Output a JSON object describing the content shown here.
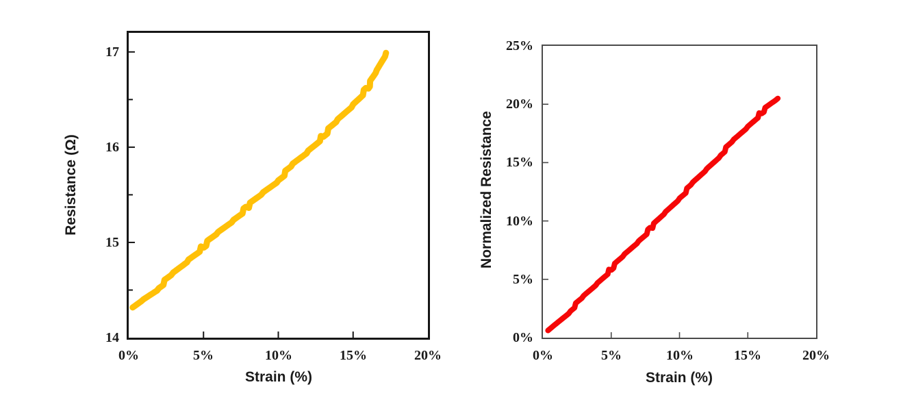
{
  "figure": {
    "background_color": "#ffffff",
    "text_color": "#1a1a1a",
    "left_axis_border_color": "#161616",
    "right_axis_border_color": "#4a4a4a"
  },
  "chart_data": [
    {
      "id": "resistance-vs-strain",
      "type": "scatter",
      "title": "",
      "xlabel": "Strain (%)",
      "ylabel": "Resistance (Ω)",
      "xlim": [
        0,
        20
      ],
      "ylim": [
        14,
        17.2
      ],
      "grid": false,
      "legend": "none",
      "marker_color": "#FFC008",
      "x_ticks": [
        "0%",
        "5%",
        "10%",
        "15%",
        "20%"
      ],
      "x_tick_values": [
        0,
        5,
        10,
        15,
        20
      ],
      "y_ticks": [
        "14",
        "15",
        "16",
        "17"
      ],
      "y_tick_values": [
        14,
        15,
        16,
        17
      ],
      "y_minor_step": 0.5,
      "points": [
        [
          0.3,
          14.3
        ],
        [
          1.0,
          14.4
        ],
        [
          2.0,
          14.53
        ],
        [
          3.0,
          14.67
        ],
        [
          4.0,
          14.82
        ],
        [
          5.0,
          14.96
        ],
        [
          6.0,
          15.1
        ],
        [
          7.0,
          15.24
        ],
        [
          8.0,
          15.38
        ],
        [
          9.0,
          15.52
        ],
        [
          10.0,
          15.66
        ],
        [
          11.0,
          15.81
        ],
        [
          12.0,
          15.96
        ],
        [
          13.0,
          16.12
        ],
        [
          14.0,
          16.28
        ],
        [
          15.0,
          16.45
        ],
        [
          16.0,
          16.63
        ],
        [
          16.6,
          16.8
        ],
        [
          17.2,
          16.99
        ]
      ]
    },
    {
      "id": "normalized-resistance-vs-strain",
      "type": "scatter",
      "title": "",
      "xlabel": "Strain (%)",
      "ylabel": "Normalized Resistance",
      "xlim": [
        0,
        20
      ],
      "ylim": [
        0,
        25
      ],
      "grid": false,
      "legend": "none",
      "marker_color": "#F50707",
      "x_ticks": [
        "0%",
        "5%",
        "10%",
        "15%",
        "20%"
      ],
      "x_tick_values": [
        0,
        5,
        10,
        15,
        20
      ],
      "y_ticks": [
        "0%",
        "5%",
        "10%",
        "15%",
        "20%",
        "25%"
      ],
      "y_tick_values": [
        0,
        5,
        10,
        15,
        20,
        25
      ],
      "y_minor_step": 0,
      "points": [
        [
          0.4,
          0.5
        ],
        [
          1.0,
          1.2
        ],
        [
          2.0,
          2.35
        ],
        [
          3.0,
          3.5
        ],
        [
          4.0,
          4.7
        ],
        [
          5.0,
          5.9
        ],
        [
          6.0,
          7.1
        ],
        [
          7.0,
          8.3
        ],
        [
          8.0,
          9.5
        ],
        [
          9.0,
          10.75
        ],
        [
          10.0,
          12.0
        ],
        [
          11.0,
          13.2
        ],
        [
          12.0,
          14.45
        ],
        [
          13.0,
          15.7
        ],
        [
          14.0,
          16.9
        ],
        [
          15.0,
          18.1
        ],
        [
          16.0,
          19.3
        ],
        [
          17.2,
          20.5
        ]
      ]
    }
  ]
}
